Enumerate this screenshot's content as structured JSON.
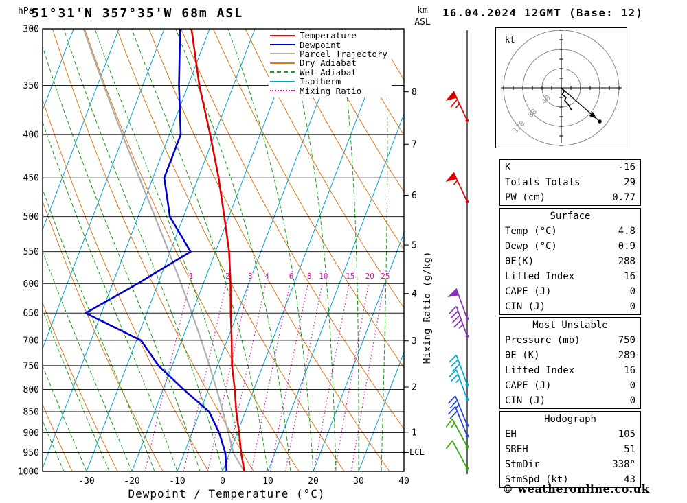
{
  "page": {
    "title": "51°31'N 357°35'W 68m ASL",
    "datetime": "16.04.2024 12GMT (Base: 12)",
    "copyright": "© weatheronline.co.uk"
  },
  "axes": {
    "pressure_unit": "hPa",
    "pressure_ticks": [
      300,
      350,
      400,
      450,
      500,
      550,
      600,
      650,
      700,
      750,
      800,
      850,
      900,
      950,
      1000
    ],
    "altitude_unit_line1": "km",
    "altitude_unit_line2": "ASL",
    "km_ticks": [
      1,
      2,
      3,
      4,
      5,
      6,
      7,
      8
    ],
    "lcl_label": "LCL",
    "x_axis_label": "Dewpoint / Temperature (°C)",
    "x_ticks": [
      -30,
      -20,
      -10,
      0,
      10,
      20,
      30,
      40
    ],
    "mixing_ratio_axis_label": "Mixing Ratio (g/kg)"
  },
  "legend": [
    {
      "label": "Temperature",
      "color": "#e00000",
      "style": "solid"
    },
    {
      "label": "Dewpoint",
      "color": "#0000cc",
      "style": "solid"
    },
    {
      "label": "Parcel Trajectory",
      "color": "#b0b0b0",
      "style": "solid"
    },
    {
      "label": "Dry Adiabat",
      "color": "#e07818",
      "style": "solid"
    },
    {
      "label": "Wet Adiabat",
      "color": "#18a018",
      "style": "dashed"
    },
    {
      "label": "Isotherm",
      "color": "#00a0d8",
      "style": "solid"
    },
    {
      "label": "Mixing Ratio",
      "color": "#d010b0",
      "style": "dotted"
    }
  ],
  "chart_data": {
    "type": "skewt_log_p",
    "pressure_range_hpa": [
      300,
      1000
    ],
    "temperature_axis_c": [
      -40,
      40
    ],
    "pressure_hpa": [
      1000,
      950,
      900,
      850,
      800,
      750,
      700,
      650,
      600,
      550,
      500,
      450,
      400,
      350,
      300
    ],
    "temperature_c": [
      4.8,
      2.5,
      0.4,
      -2.0,
      -4.2,
      -6.8,
      -9.0,
      -11.5,
      -14.0,
      -17.0,
      -21.0,
      -25.5,
      -31.0,
      -37.5,
      -44.0
    ],
    "dewpoint_c": [
      0.9,
      -1.0,
      -4.0,
      -8.0,
      -15.5,
      -23.0,
      -29.0,
      -43.5,
      -34.5,
      -25.5,
      -33.0,
      -37.5,
      -37.5,
      -42.0,
      -46.5
    ],
    "parcel": {
      "surface_temp_c": 4.8,
      "lcl_hpa": 950
    },
    "isotherm_step_c": 10,
    "dry_adiabat_step_k": 10,
    "wet_adiabat_step_c": 5,
    "mixing_ratio_lines_g_kg": [
      1,
      2,
      3,
      4,
      6,
      8,
      10,
      15,
      20,
      25
    ],
    "winds": [
      {
        "p": 385,
        "kt": 65,
        "dir": 335,
        "color": "#e00000"
      },
      {
        "p": 480,
        "kt": 55,
        "dir": 335,
        "color": "#e00000"
      },
      {
        "p": 660,
        "kt": 50,
        "dir": 340,
        "color": "#8833bb"
      },
      {
        "p": 692,
        "kt": 45,
        "dir": 340,
        "color": "#8833bb"
      },
      {
        "p": 790,
        "kt": 30,
        "dir": 340,
        "color": "#00aacc"
      },
      {
        "p": 822,
        "kt": 25,
        "dir": 340,
        "color": "#00aacc"
      },
      {
        "p": 882,
        "kt": 25,
        "dir": 338,
        "color": "#2244dd"
      },
      {
        "p": 908,
        "kt": 20,
        "dir": 338,
        "color": "#2244dd"
      },
      {
        "p": 935,
        "kt": 15,
        "dir": 332,
        "color": "#33aa00"
      },
      {
        "p": 992,
        "kt": 10,
        "dir": 332,
        "color": "#33aa00"
      }
    ],
    "colors": {
      "temperature": "#e00000",
      "dewpoint": "#0000cc",
      "parcel": "#b0b0b0",
      "dry_adiabat": "#e07818",
      "wet_adiabat": "#18a018",
      "isotherm": "#00a0d8",
      "mixing_ratio": "#d010b0"
    }
  },
  "hodograph": {
    "unit": "kt",
    "ring_step_kt": 40,
    "ring_labels": [
      "120",
      "80",
      "40"
    ],
    "trace_uv_kt": [
      [
        0,
        0
      ],
      [
        6,
        -7
      ],
      [
        2,
        -14
      ],
      [
        10,
        -20
      ],
      [
        7,
        -26
      ],
      [
        14,
        -34
      ],
      [
        21,
        -46
      ]
    ],
    "storm_uv_kt": [
      80,
      -70
    ],
    "storm_dir_deg": 338,
    "storm_speed_kt": 43
  },
  "stats_tables": [
    {
      "rows": [
        [
          "K",
          "-16"
        ],
        [
          "Totals Totals",
          "29"
        ],
        [
          "PW (cm)",
          "0.77"
        ]
      ]
    },
    {
      "title": "Surface",
      "rows": [
        [
          "Temp (°C)",
          "4.8"
        ],
        [
          "Dewp (°C)",
          "0.9"
        ],
        [
          "θE(K)",
          "288"
        ],
        [
          "Lifted Index",
          "16"
        ],
        [
          "CAPE (J)",
          "0"
        ],
        [
          "CIN (J)",
          "0"
        ]
      ]
    },
    {
      "title": "Most Unstable",
      "rows": [
        [
          "Pressure (mb)",
          "750"
        ],
        [
          "θE (K)",
          "289"
        ],
        [
          "Lifted Index",
          "16"
        ],
        [
          "CAPE (J)",
          "0"
        ],
        [
          "CIN (J)",
          "0"
        ]
      ]
    },
    {
      "title": "Hodograph",
      "rows": [
        [
          "EH",
          "105"
        ],
        [
          "SREH",
          "51"
        ],
        [
          "StmDir",
          "338°"
        ],
        [
          "StmSpd (kt)",
          "43"
        ]
      ]
    }
  ]
}
